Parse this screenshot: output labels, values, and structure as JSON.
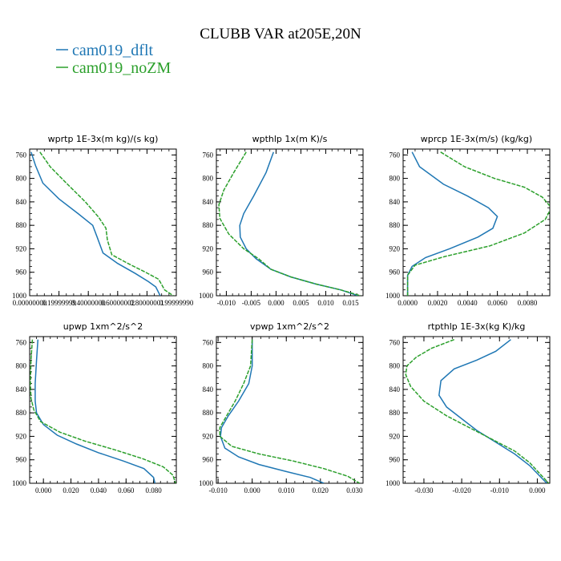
{
  "figure": {
    "title": "CLUBB VAR at205E,20N",
    "legend": [
      {
        "label": "cam019_dflt",
        "color": "#1f77b4"
      },
      {
        "label": "cam019_noZM",
        "color": "#2ca02c"
      }
    ]
  },
  "chart_data": [
    {
      "type": "line",
      "title": "wprtp  1E-3x(m kg)/(s kg)",
      "xlim": [
        0.0,
        1.0
      ],
      "ylim": [
        1000,
        750
      ],
      "y_ticks": [
        760,
        800,
        840,
        880,
        920,
        960,
        1000
      ],
      "x_ticks": [
        0.0,
        0.2,
        0.4,
        0.6,
        0.8,
        1.0
      ],
      "x_tick_labels": [
        "0.00000000",
        "0.19999999",
        "0.40000000",
        "0.60000002",
        "0.80000001",
        "0.99999990"
      ],
      "series": [
        {
          "name": "cam019_dflt",
          "color": "#1f77b4",
          "x": [
            0.01,
            0.04,
            0.09,
            0.2,
            0.33,
            0.43,
            0.46,
            0.5,
            0.6,
            0.72,
            0.81,
            0.86,
            0.89
          ],
          "y": [
            755,
            778,
            808,
            835,
            860,
            880,
            900,
            927,
            945,
            962,
            976,
            985,
            1000
          ]
        },
        {
          "name": "cam019_noZM",
          "color": "#2ca02c",
          "x": [
            0.07,
            0.14,
            0.25,
            0.38,
            0.47,
            0.52,
            0.53,
            0.56,
            0.67,
            0.79,
            0.88,
            0.92,
            0.98
          ],
          "y": [
            755,
            780,
            808,
            840,
            866,
            885,
            905,
            930,
            945,
            960,
            972,
            990,
            1000
          ]
        }
      ]
    },
    {
      "type": "line",
      "title": "wpthlp  1x(m K)/s",
      "xlim": [
        -0.012,
        0.0175
      ],
      "ylim": [
        1000,
        750
      ],
      "y_ticks": [
        760,
        800,
        840,
        880,
        920,
        960,
        1000
      ],
      "x_ticks": [
        -0.01,
        -0.005,
        0.0,
        0.005,
        0.01,
        0.015
      ],
      "x_tick_labels": [
        "-0.010",
        "-0.005",
        "0.000",
        "0.005",
        "0.010",
        "0.015"
      ],
      "series": [
        {
          "name": "cam019_dflt",
          "color": "#1f77b4",
          "x": [
            -0.0005,
            -0.002,
            -0.0045,
            -0.0065,
            -0.0073,
            -0.0072,
            -0.006,
            -0.004,
            -0.001,
            0.003,
            0.008,
            0.013,
            0.0165
          ],
          "y": [
            755,
            790,
            830,
            860,
            880,
            900,
            920,
            937,
            955,
            968,
            980,
            990,
            1000
          ]
        },
        {
          "name": "cam019_noZM",
          "color": "#2ca02c",
          "x": [
            -0.006,
            -0.0085,
            -0.0105,
            -0.0115,
            -0.0113,
            -0.0095,
            -0.0065,
            -0.0035,
            -0.001,
            0.003,
            0.008,
            0.013,
            0.017
          ],
          "y": [
            755,
            790,
            820,
            845,
            868,
            895,
            920,
            937,
            955,
            968,
            980,
            990,
            1000
          ]
        }
      ]
    },
    {
      "type": "line",
      "title": "wprcp  1E-3x(m/s) (kg/kg)",
      "xlim": [
        -0.0003,
        0.0095
      ],
      "ylim": [
        1000,
        750
      ],
      "y_ticks": [
        760,
        800,
        840,
        880,
        920,
        960,
        1000
      ],
      "x_ticks": [
        0.0,
        0.002,
        0.004,
        0.006,
        0.008
      ],
      "x_tick_labels": [
        "0.0000",
        "0.0020",
        "0.0040",
        "0.0060",
        "0.0080"
      ],
      "series": [
        {
          "name": "cam019_dflt",
          "color": "#1f77b4",
          "x": [
            0.0003,
            0.0008,
            0.0024,
            0.004,
            0.0054,
            0.006,
            0.0057,
            0.0047,
            0.0028,
            0.0012,
            0.0003,
            0.0,
            0.0
          ],
          "y": [
            755,
            780,
            810,
            830,
            850,
            865,
            885,
            900,
            920,
            935,
            950,
            965,
            1000
          ]
        },
        {
          "name": "cam019_noZM",
          "color": "#2ca02c",
          "x": [
            0.0022,
            0.0038,
            0.0058,
            0.0078,
            0.009,
            0.0096,
            0.0092,
            0.0078,
            0.0055,
            0.0025,
            0.0005,
            0.0,
            0.0
          ],
          "y": [
            755,
            780,
            800,
            815,
            832,
            850,
            870,
            893,
            915,
            933,
            948,
            965,
            1000
          ]
        }
      ]
    },
    {
      "type": "line",
      "title": "upwp  1xm^2/s^2",
      "xlim": [
        -0.01,
        0.0965
      ],
      "ylim": [
        1000,
        750
      ],
      "y_ticks": [
        760,
        800,
        840,
        880,
        920,
        960,
        1000
      ],
      "x_ticks": [
        0.0,
        0.02,
        0.04,
        0.06,
        0.08
      ],
      "x_tick_labels": [
        "0.000",
        "0.020",
        "0.040",
        "0.060",
        "0.080"
      ],
      "series": [
        {
          "name": "cam019_dflt",
          "color": "#1f77b4",
          "x": [
            -0.004,
            -0.005,
            -0.006,
            -0.006,
            -0.005,
            0.0,
            0.01,
            0.024,
            0.04,
            0.058,
            0.073,
            0.08,
            0.081
          ],
          "y": [
            755,
            790,
            830,
            860,
            880,
            900,
            918,
            933,
            948,
            962,
            975,
            990,
            1000
          ]
        },
        {
          "name": "cam019_noZM",
          "color": "#2ca02c",
          "x": [
            -0.008,
            -0.009,
            -0.0095,
            -0.009,
            -0.007,
            -0.002,
            0.012,
            0.03,
            0.052,
            0.072,
            0.087,
            0.094,
            0.096
          ],
          "y": [
            755,
            790,
            830,
            855,
            875,
            895,
            913,
            928,
            943,
            958,
            972,
            986,
            1000
          ]
        }
      ]
    },
    {
      "type": "line",
      "title": "vpwp  1xm^2/s^2",
      "xlim": [
        -0.0105,
        0.0325
      ],
      "ylim": [
        1000,
        750
      ],
      "y_ticks": [
        760,
        800,
        840,
        880,
        920,
        960,
        1000
      ],
      "x_ticks": [
        -0.01,
        0.0,
        0.01,
        0.02,
        0.03
      ],
      "x_tick_labels": [
        "-0.010",
        "0.000",
        "0.010",
        "0.020",
        "0.030"
      ],
      "series": [
        {
          "name": "cam019_dflt",
          "color": "#1f77b4",
          "x": [
            0.0,
            0.0,
            -0.001,
            -0.004,
            -0.007,
            -0.009,
            -0.0093,
            -0.008,
            -0.004,
            0.002,
            0.01,
            0.017,
            0.021
          ],
          "y": [
            755,
            800,
            830,
            860,
            885,
            905,
            920,
            940,
            955,
            968,
            980,
            990,
            1000
          ]
        },
        {
          "name": "cam019_noZM",
          "color": "#2ca02c",
          "x": [
            0.0,
            -0.0005,
            -0.0025,
            -0.005,
            -0.0075,
            -0.0095,
            -0.0095,
            -0.006,
            0.002,
            0.012,
            0.021,
            0.028,
            0.0315
          ],
          "y": [
            755,
            800,
            830,
            860,
            885,
            905,
            920,
            937,
            950,
            962,
            975,
            988,
            1000
          ]
        }
      ]
    },
    {
      "type": "line",
      "title": "rtpthlp  1E-3x(kg K)/kg",
      "xlim": [
        -0.0355,
        0.0033
      ],
      "ylim": [
        1000,
        750
      ],
      "y_ticks": [
        760,
        800,
        840,
        880,
        920,
        960,
        1000
      ],
      "x_ticks": [
        -0.03,
        -0.02,
        -0.01,
        0.0
      ],
      "x_tick_labels": [
        "-0.030",
        "-0.020",
        "-0.010",
        "0.000"
      ],
      "series": [
        {
          "name": "cam019_dflt",
          "color": "#1f77b4",
          "x": [
            -0.007,
            -0.011,
            -0.016,
            -0.022,
            -0.0255,
            -0.026,
            -0.024,
            -0.02,
            -0.016,
            -0.011,
            -0.006,
            -0.002,
            0.0025
          ],
          "y": [
            755,
            775,
            790,
            805,
            825,
            850,
            870,
            890,
            910,
            930,
            950,
            970,
            1000
          ]
        },
        {
          "name": "cam019_noZM",
          "color": "#2ca02c",
          "x": [
            -0.022,
            -0.028,
            -0.032,
            -0.0345,
            -0.0348,
            -0.0335,
            -0.03,
            -0.024,
            -0.018,
            -0.012,
            -0.006,
            -0.002,
            0.003
          ],
          "y": [
            755,
            770,
            785,
            800,
            815,
            835,
            860,
            885,
            905,
            925,
            945,
            965,
            1000
          ]
        }
      ]
    }
  ]
}
